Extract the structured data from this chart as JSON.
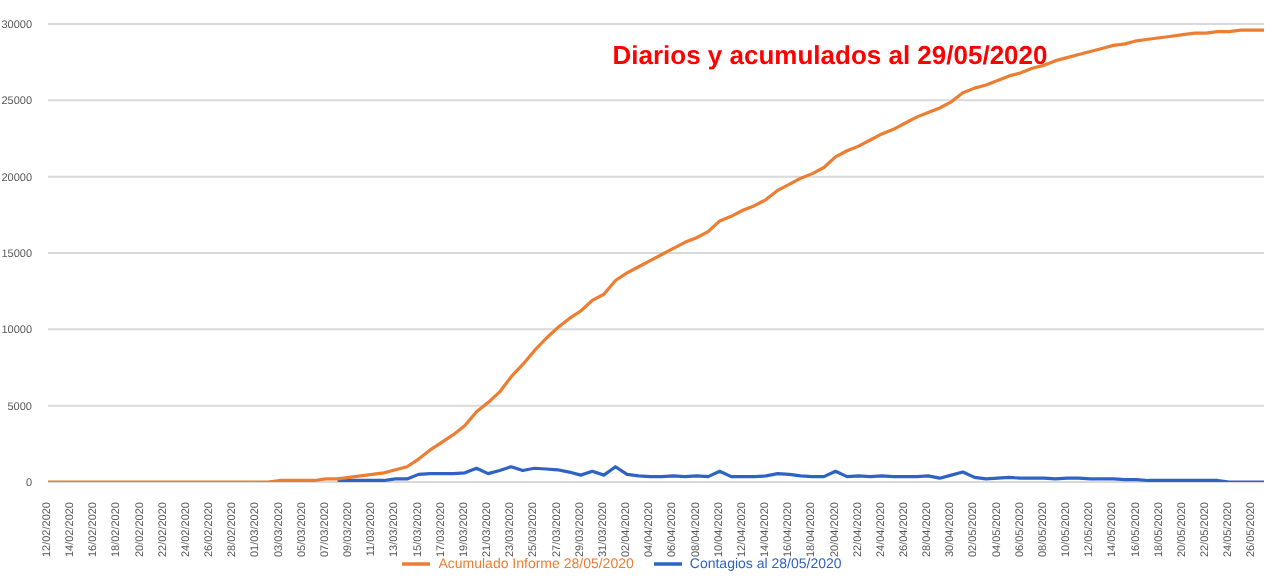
{
  "chart_data": {
    "type": "line",
    "title": "Diarios y acumulados al 29/05/2020",
    "categories": [
      "12/02/2020",
      null,
      "14/02/2020",
      null,
      "16/02/2020",
      null,
      "18/02/2020",
      null,
      "20/02/2020",
      null,
      "22/02/2020",
      null,
      "24/02/2020",
      null,
      "26/02/2020",
      null,
      "28/02/2020",
      null,
      "01/03/2020",
      null,
      "03/03/2020",
      null,
      "05/03/2020",
      null,
      "07/03/2020",
      null,
      "09/03/2020",
      null,
      "11/03/2020",
      null,
      "13/03/2020",
      null,
      "15/03/2020",
      null,
      "17/03/2020",
      null,
      "19/03/2020",
      null,
      "21/03/2020",
      null,
      "23/03/2020",
      null,
      "25/03/2020",
      null,
      "27/03/2020",
      null,
      "29/03/2020",
      null,
      "31/03/2020",
      null,
      "02/04/2020",
      null,
      "04/04/2020",
      null,
      "06/04/2020",
      null,
      "08/04/2020",
      null,
      "10/04/2020",
      null,
      "12/04/2020",
      null,
      "14/04/2020",
      null,
      "16/04/2020",
      null,
      "18/04/2020",
      null,
      "20/04/2020",
      null,
      "22/04/2020",
      null,
      "24/04/2020",
      null,
      "26/04/2020",
      null,
      "28/04/2020",
      null,
      "30/04/2020",
      null,
      "02/05/2020",
      null,
      "04/05/2020",
      null,
      "06/05/2020",
      null,
      "08/05/2020",
      null,
      "10/05/2020",
      null,
      "12/05/2020",
      null,
      "14/05/2020",
      null,
      "16/05/2020",
      null,
      "18/05/2020",
      null,
      "20/05/2020",
      null,
      "22/05/2020",
      null,
      "24/05/2020",
      null,
      "26/05/2020",
      null
    ],
    "series": [
      {
        "name": "Contagios al 28/05/2020",
        "color": "#2e63c4",
        "values": [
          null,
          null,
          null,
          null,
          null,
          null,
          null,
          null,
          null,
          null,
          null,
          null,
          null,
          null,
          null,
          null,
          null,
          null,
          null,
          null,
          null,
          null,
          null,
          null,
          null,
          100,
          100,
          100,
          100,
          100,
          200,
          200,
          500,
          550,
          550,
          550,
          600,
          900,
          550,
          750,
          1000,
          750,
          900,
          850,
          800,
          650,
          450,
          700,
          450,
          1000,
          500,
          400,
          350,
          350,
          400,
          350,
          400,
          350,
          700,
          350,
          350,
          350,
          400,
          550,
          500,
          400,
          350,
          350,
          700,
          350,
          400,
          350,
          400,
          350,
          350,
          350,
          400,
          250,
          450,
          650,
          300,
          200,
          250,
          300,
          250,
          250,
          250,
          200,
          250,
          250,
          200,
          200,
          200,
          150,
          150,
          100,
          100,
          100,
          100,
          100,
          100,
          100,
          0,
          0,
          0,
          0
        ]
      },
      {
        "name": "Acumulado Informe 28/05/2020",
        "color": "#ed7d31",
        "values": [
          0,
          0,
          0,
          0,
          0,
          0,
          0,
          0,
          0,
          0,
          0,
          0,
          0,
          0,
          0,
          0,
          0,
          0,
          0,
          0,
          100,
          100,
          100,
          100,
          200,
          200,
          300,
          400,
          500,
          600,
          800,
          1000,
          1500,
          2100,
          2600,
          3100,
          3700,
          4600,
          5200,
          5900,
          6900,
          7700,
          8600,
          9400,
          10100,
          10700,
          11200,
          11900,
          12300,
          13200,
          13700,
          14100,
          14500,
          14900,
          15300,
          15700,
          16000,
          16400,
          17100,
          17400,
          17800,
          18100,
          18500,
          19100,
          19500,
          19900,
          20200,
          20600,
          21300,
          21700,
          22000,
          22400,
          22800,
          23100,
          23500,
          23900,
          24200,
          24500,
          24900,
          25500,
          25800,
          26000,
          26300,
          26600,
          26800,
          27100,
          27300,
          27600,
          27800,
          28000,
          28200,
          28400,
          28600,
          28700,
          28900,
          29000,
          29100,
          29200,
          29300,
          29400,
          29400,
          29500,
          29500,
          29600,
          29600,
          29600
        ]
      }
    ],
    "ylim": [
      0,
      30000
    ],
    "yticks": [
      0,
      5000,
      10000,
      15000,
      20000,
      25000,
      30000
    ],
    "grid": "y",
    "legend": "bottom",
    "marker": "none",
    "line_style": "solid"
  }
}
